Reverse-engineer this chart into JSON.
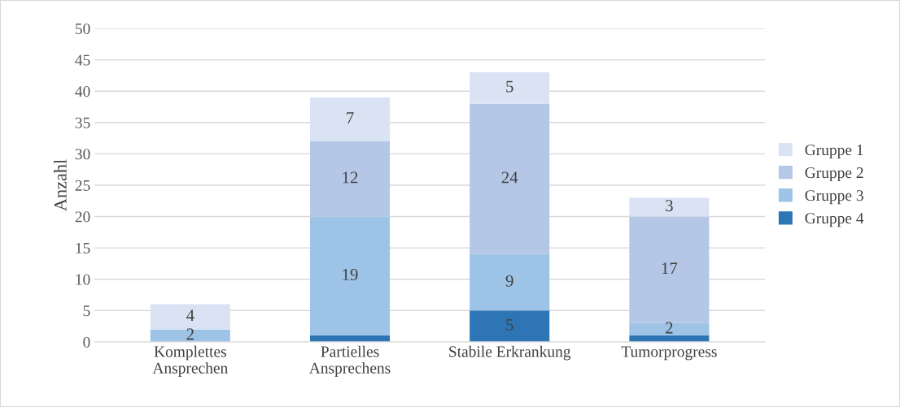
{
  "chart_data": {
    "type": "bar",
    "stacked": true,
    "ylabel": "Anzahl",
    "categories": [
      "Komplettes\nAnsprechen",
      "Partielles\nAnsprechens",
      "Stabile Erkrankung",
      "Tumorprogress"
    ],
    "series": [
      {
        "name": "Gruppe 4",
        "color": "#2e75b6",
        "values": [
          0,
          1,
          5,
          1
        ],
        "value_labels": [
          null,
          null,
          "5",
          null
        ]
      },
      {
        "name": "Gruppe 3",
        "color": "#9dc3e6",
        "values": [
          2,
          19,
          9,
          2
        ],
        "value_labels": [
          "2",
          "19",
          "9",
          "2"
        ]
      },
      {
        "name": "Gruppe 2",
        "color": "#b4c7e7",
        "values": [
          0,
          12,
          24,
          17
        ],
        "value_labels": [
          null,
          "12",
          "24",
          "17"
        ]
      },
      {
        "name": "Gruppe 1",
        "color": "#dae3f3",
        "values": [
          4,
          7,
          5,
          3
        ],
        "value_labels": [
          "4",
          "7",
          "5",
          "3"
        ]
      }
    ],
    "ylim": [
      0,
      50
    ],
    "yticks": [
      0,
      5,
      10,
      15,
      20,
      25,
      30,
      35,
      40,
      45,
      50
    ],
    "grid": "y",
    "legend": "right"
  }
}
